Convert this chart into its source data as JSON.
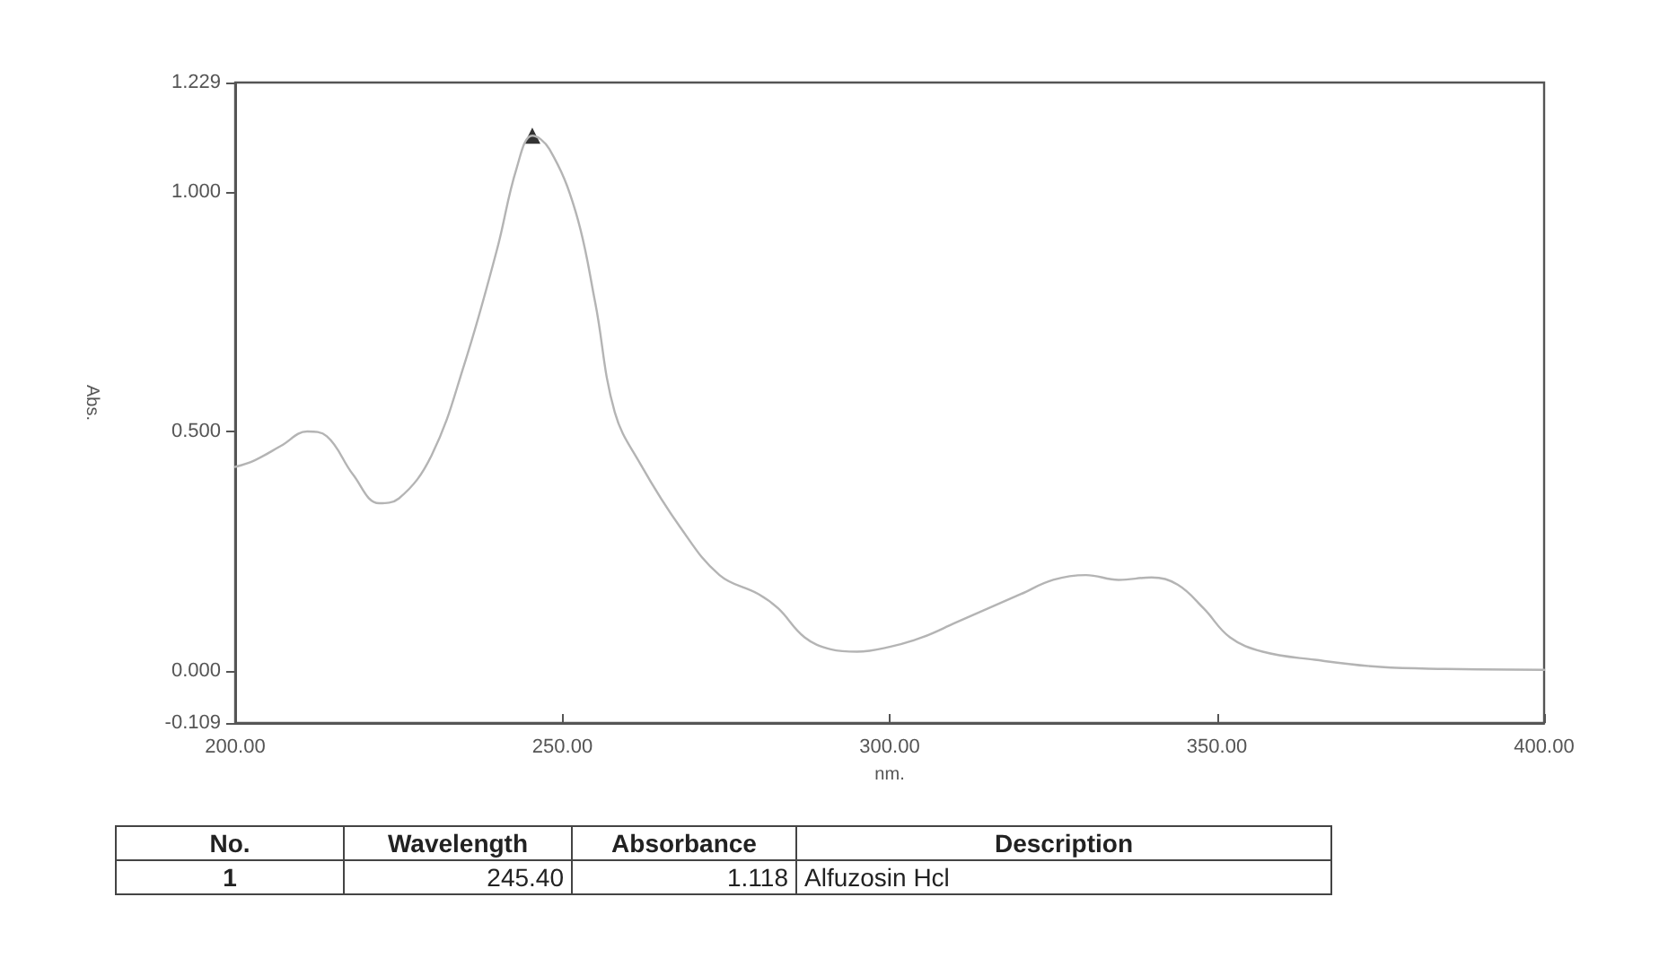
{
  "chart_data": {
    "type": "line",
    "xlabel": "nm.",
    "ylabel": "Abs.",
    "xlim": [
      200,
      400
    ],
    "ylim": [
      -0.109,
      1.229
    ],
    "xticks": [
      {
        "value": 200,
        "label": "200.00"
      },
      {
        "value": 250,
        "label": "250.00"
      },
      {
        "value": 300,
        "label": "300.00"
      },
      {
        "value": 350,
        "label": "350.00"
      },
      {
        "value": 400,
        "label": "400.00"
      }
    ],
    "yticks": [
      {
        "value": -0.109,
        "label": "-0.109"
      },
      {
        "value": 0,
        "label": "0.000"
      },
      {
        "value": 0.5,
        "label": "0.500"
      },
      {
        "value": 1,
        "label": "1.000"
      },
      {
        "value": 1.229,
        "label": "1.229"
      }
    ],
    "grid": false,
    "line_style": "solid",
    "series": [
      {
        "color": "#b4b4b4",
        "marker": "none",
        "x": [
          200,
          203,
          207,
          211,
          214,
          218,
          222,
          225,
          230,
          235,
          240,
          243,
          245.4,
          248,
          252,
          255,
          258,
          262,
          268,
          274,
          280,
          283,
          287,
          291,
          295,
          300,
          305,
          310,
          315,
          320,
          325,
          330,
          335,
          340,
          344,
          348,
          352,
          357,
          365,
          375,
          385,
          400
        ],
        "values": [
          0.426,
          0.44,
          0.47,
          0.5,
          0.49,
          0.41,
          0.35,
          0.36,
          0.45,
          0.64,
          0.88,
          1.05,
          1.118,
          1.09,
          0.96,
          0.77,
          0.54,
          0.43,
          0.3,
          0.2,
          0.16,
          0.13,
          0.07,
          0.045,
          0.04,
          0.05,
          0.07,
          0.1,
          0.13,
          0.16,
          0.19,
          0.2,
          0.19,
          0.195,
          0.18,
          0.13,
          0.07,
          0.04,
          0.023,
          0.008,
          0.004,
          0.002
        ]
      },
      {
        "type": "scatter",
        "color": "#000000",
        "marker": "triangle",
        "x": [
          245.4
        ],
        "values": [
          1.118
        ]
      }
    ],
    "annotations": [
      "No.",
      "Wavelength",
      "Absorbance",
      "Description",
      "1",
      "245.40",
      "1.118",
      "Alfuzosin Hcl"
    ]
  }
}
